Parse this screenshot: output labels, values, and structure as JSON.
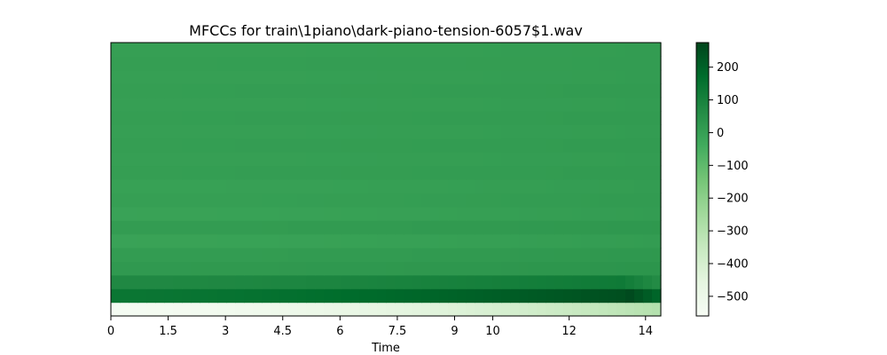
{
  "chart_data": {
    "type": "heatmap",
    "title": "MFCCs for train\\1piano\\dark-piano-tension-6057$1.wav",
    "xlabel": "Time",
    "ylabel": "",
    "xlim": [
      0,
      14.4
    ],
    "x_ticks": [
      0,
      1.5,
      3,
      4.5,
      6,
      7.5,
      9,
      10,
      12,
      14
    ],
    "x_tick_labels": [
      "0",
      "1.5",
      "3",
      "4.5",
      "6",
      "7.5",
      "9",
      "10",
      "12",
      "14"
    ],
    "y_ticks_shown": false,
    "n_coefficients": 20,
    "colormap": "Greens",
    "colorbar": {
      "vmin": -560,
      "vmax": 275,
      "ticks": [
        200,
        100,
        0,
        -100,
        -200,
        -300,
        -400,
        -500
      ],
      "tick_labels": [
        "200",
        "100",
        "0",
        "−100",
        "−200",
        "−300",
        "−400",
        "−500"
      ]
    },
    "approx_values_by_coefficient": [
      {
        "coefficient": 1,
        "start": -545,
        "end": -300,
        "note": "lightest band at bottom, brightening toward end"
      },
      {
        "coefficient": 2,
        "start": 140,
        "end": 260,
        "note": "darkest band, peak near 13.7 s"
      },
      {
        "coefficient": 3,
        "start": 75,
        "end": 130
      },
      {
        "coefficient": 4,
        "start": 20,
        "end": 35
      },
      {
        "coefficient": 5,
        "start": 10,
        "end": 25
      },
      {
        "coefficient": 6,
        "start": -10,
        "end": 10
      },
      {
        "coefficient": 7,
        "start": 10,
        "end": 25
      },
      {
        "coefficient": 8,
        "start": -10,
        "end": 10
      },
      {
        "coefficient": 9,
        "start": 0,
        "end": 15
      },
      {
        "coefficient": 10,
        "start": -5,
        "end": 10
      },
      {
        "coefficient": 11,
        "start": 5,
        "end": 15
      },
      {
        "coefficient": 12,
        "start": 0,
        "end": 10
      },
      {
        "coefficient": 13,
        "start": 5,
        "end": 15
      },
      {
        "coefficient": 14,
        "start": 0,
        "end": 10
      },
      {
        "coefficient": 15,
        "start": 5,
        "end": 15
      },
      {
        "coefficient": 16,
        "start": 0,
        "end": 10
      },
      {
        "coefficient": 17,
        "start": 5,
        "end": 15
      },
      {
        "coefficient": 18,
        "start": 0,
        "end": 10
      },
      {
        "coefficient": 19,
        "start": 5,
        "end": 10
      },
      {
        "coefficient": 20,
        "start": 0,
        "end": 10
      }
    ]
  }
}
